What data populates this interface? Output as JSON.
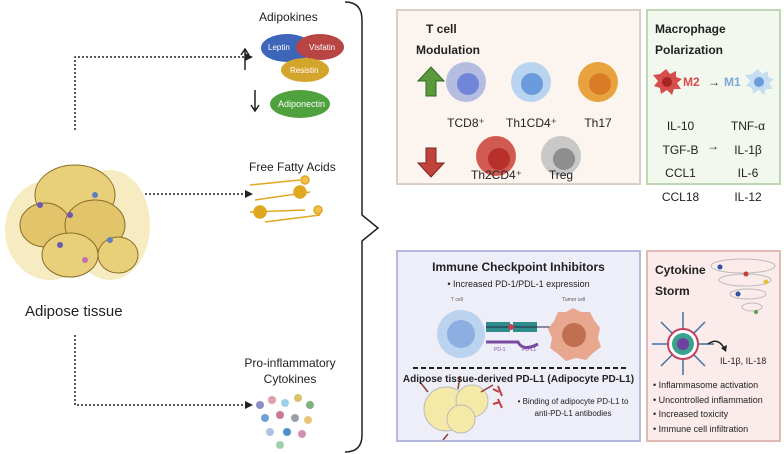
{
  "left": {
    "tissue_label": "Adipose tissue",
    "adipokines": {
      "title": "Adipokines",
      "leptin": "Leptin",
      "visfatin": "Visfatin",
      "resistin": "Resistin",
      "adiponectin": "Adiponectin"
    },
    "ffa_title": "Free Fatty Acids",
    "cytokines_title": [
      "Pro-inflammatory",
      "Cytokines"
    ]
  },
  "tcell": {
    "title": [
      "T cell",
      "Modulation"
    ],
    "up": [
      "TCD8⁺",
      "Th1CD4⁺",
      "Th17"
    ],
    "down": [
      "Th2CD4⁺",
      "Treg"
    ]
  },
  "macrophage": {
    "title": [
      "Macrophage",
      "Polarization"
    ],
    "m2": "M2",
    "arrow": "→",
    "m1": "M1",
    "m2_markers": [
      "IL-10",
      "TGF-B",
      "CCL1",
      "CCL18"
    ],
    "m1_markers": [
      "TNF-α",
      "IL-1β",
      "IL-6",
      "IL-12"
    ]
  },
  "checkpoint": {
    "title": "Immune Checkpoint Inhibitors",
    "bullet1": "• Increased PD-1/PDL-1 expression",
    "tcell_label": "T cell",
    "tumor_label": "Tumor cell",
    "pd1": "PD-1",
    "pdl1": "PD-L1",
    "subtitle": "Adipose tissue-derived PD-L1 (Adipocyte PD-L1)",
    "bullet2": [
      "• Binding of adipocyte PD-L1 to",
      "anti-PD-L1 antibodies"
    ]
  },
  "storm": {
    "title": [
      "Cytokine",
      "Storm"
    ],
    "products": "IL-1β, IL-18",
    "bullets": [
      "• Inflammasome activation",
      "• Uncontrolled inflammation",
      "• Increased toxicity",
      "• Immune cell infiltration"
    ]
  },
  "colors": {
    "tcell_bg": "#fcf5ef",
    "macro_bg": "#f2f8ee",
    "checkpoint_bg": "#eeeef9",
    "storm_bg": "#fbeceb",
    "up_arrow": "#5a9a3c",
    "down_arrow": "#c0443b"
  }
}
